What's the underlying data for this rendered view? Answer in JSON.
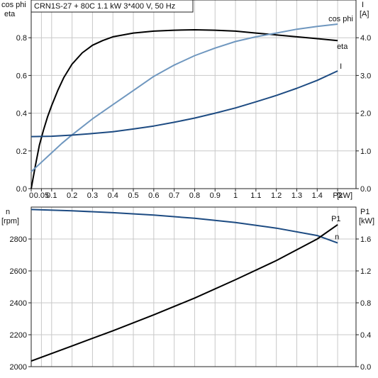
{
  "chart_data": [
    {
      "type": "line",
      "title": "CRN1S-27 + 80C   1.1 kW   3*400 V, 50 Hz",
      "xlabel": "P2 [kW]",
      "x_unit": "[kW]",
      "x_ticks": [
        "0",
        "0.05",
        "0.1",
        "0.2",
        "0.3",
        "0.4",
        "0.5",
        "0.6",
        "0.7",
        "0.8",
        "0.9",
        "1",
        "1.1",
        "1.2",
        "1.3",
        "1.4",
        "P2"
      ],
      "x_tick_values": [
        0,
        0.05,
        0.1,
        0.2,
        0.3,
        0.4,
        0.5,
        0.6,
        0.7,
        0.8,
        0.9,
        1.0,
        1.1,
        1.2,
        1.3,
        1.4,
        1.5
      ],
      "xlim": [
        0,
        1.59
      ],
      "y_left": {
        "label_line1": "cos phi",
        "label_line2": "eta",
        "lim": [
          0,
          1.0
        ],
        "ticks": [
          "0.0",
          "0.2",
          "0.4",
          "0.6",
          "0.8"
        ],
        "tick_values": [
          0,
          0.2,
          0.4,
          0.6,
          0.8
        ]
      },
      "y_right": {
        "label_line1": "I",
        "label_line2": "[A]",
        "lim": [
          0,
          5.0
        ],
        "ticks": [
          "0.0",
          "1.0",
          "2.0",
          "3.0",
          "4.0"
        ],
        "tick_values": [
          0,
          1,
          2,
          3,
          4
        ]
      },
      "grid": true,
      "series": [
        {
          "name": "eta",
          "axis": "left",
          "color": "#000000",
          "points": [
            [
              0,
              0
            ],
            [
              0.02,
              0.12
            ],
            [
              0.04,
              0.23
            ],
            [
              0.06,
              0.31
            ],
            [
              0.08,
              0.38
            ],
            [
              0.1,
              0.44
            ],
            [
              0.13,
              0.52
            ],
            [
              0.16,
              0.59
            ],
            [
              0.2,
              0.66
            ],
            [
              0.25,
              0.72
            ],
            [
              0.3,
              0.76
            ],
            [
              0.35,
              0.785
            ],
            [
              0.4,
              0.805
            ],
            [
              0.5,
              0.825
            ],
            [
              0.6,
              0.835
            ],
            [
              0.7,
              0.84
            ],
            [
              0.8,
              0.842
            ],
            [
              0.9,
              0.84
            ],
            [
              1.0,
              0.835
            ],
            [
              1.1,
              0.825
            ],
            [
              1.2,
              0.815
            ],
            [
              1.3,
              0.805
            ],
            [
              1.4,
              0.795
            ],
            [
              1.5,
              0.785
            ]
          ]
        },
        {
          "name": "cos phi",
          "axis": "left",
          "color": "#6f97bf",
          "points": [
            [
              0,
              0.09
            ],
            [
              0.05,
              0.14
            ],
            [
              0.1,
              0.19
            ],
            [
              0.15,
              0.24
            ],
            [
              0.2,
              0.285
            ],
            [
              0.3,
              0.37
            ],
            [
              0.4,
              0.445
            ],
            [
              0.5,
              0.52
            ],
            [
              0.6,
              0.595
            ],
            [
              0.7,
              0.655
            ],
            [
              0.8,
              0.705
            ],
            [
              0.9,
              0.745
            ],
            [
              1.0,
              0.78
            ],
            [
              1.1,
              0.805
            ],
            [
              1.2,
              0.825
            ],
            [
              1.3,
              0.845
            ],
            [
              1.4,
              0.86
            ],
            [
              1.5,
              0.872
            ]
          ]
        },
        {
          "name": "I",
          "axis": "right",
          "color": "#1d4b82",
          "points": [
            [
              0,
              1.38
            ],
            [
              0.1,
              1.39
            ],
            [
              0.2,
              1.42
            ],
            [
              0.3,
              1.46
            ],
            [
              0.4,
              1.51
            ],
            [
              0.5,
              1.58
            ],
            [
              0.6,
              1.66
            ],
            [
              0.7,
              1.76
            ],
            [
              0.8,
              1.87
            ],
            [
              0.9,
              2.0
            ],
            [
              1.0,
              2.14
            ],
            [
              1.1,
              2.3
            ],
            [
              1.2,
              2.47
            ],
            [
              1.3,
              2.66
            ],
            [
              1.4,
              2.87
            ],
            [
              1.5,
              3.12
            ]
          ]
        }
      ]
    },
    {
      "type": "line",
      "xlim": [
        0,
        1.59
      ],
      "y_left": {
        "label_line1": "n",
        "label_line2": "[rpm]",
        "lim": [
          2000,
          3000
        ],
        "ticks": [
          "2000",
          "2200",
          "2400",
          "2600",
          "2800"
        ],
        "tick_values": [
          2000,
          2200,
          2400,
          2600,
          2800
        ]
      },
      "y_right": {
        "label_line1": "P1",
        "label_line2": "[kW]",
        "lim": [
          0,
          2.0
        ],
        "ticks": [
          "0.0",
          "0.4",
          "0.8",
          "1.2",
          "1.6"
        ],
        "tick_values": [
          0,
          0.4,
          0.8,
          1.2,
          1.6
        ]
      },
      "grid": true,
      "series": [
        {
          "name": "n",
          "axis": "left",
          "color": "#1d4b82",
          "points": [
            [
              0,
              2985
            ],
            [
              0.2,
              2977
            ],
            [
              0.4,
              2965
            ],
            [
              0.6,
              2950
            ],
            [
              0.8,
              2930
            ],
            [
              1.0,
              2903
            ],
            [
              1.2,
              2868
            ],
            [
              1.4,
              2822
            ],
            [
              1.5,
              2775
            ]
          ]
        },
        {
          "name": "P1",
          "axis": "right",
          "color": "#000000",
          "points": [
            [
              0,
              0.07
            ],
            [
              0.2,
              0.26
            ],
            [
              0.4,
              0.45
            ],
            [
              0.6,
              0.65
            ],
            [
              0.8,
              0.86
            ],
            [
              1.0,
              1.09
            ],
            [
              1.2,
              1.33
            ],
            [
              1.4,
              1.6
            ],
            [
              1.5,
              1.78
            ]
          ]
        }
      ]
    }
  ]
}
